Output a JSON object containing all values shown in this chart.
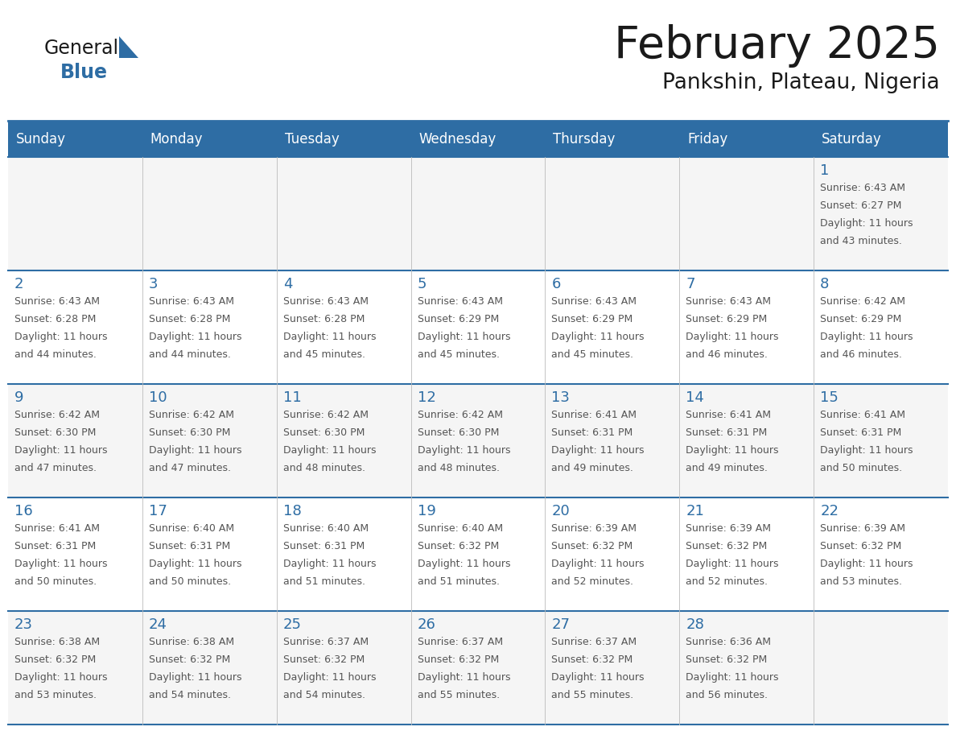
{
  "title": "February 2025",
  "subtitle": "Pankshin, Plateau, Nigeria",
  "days_of_week": [
    "Sunday",
    "Monday",
    "Tuesday",
    "Wednesday",
    "Thursday",
    "Friday",
    "Saturday"
  ],
  "header_bg": "#2E6DA4",
  "header_text": "#FFFFFF",
  "cell_bg_odd": "#F5F5F5",
  "cell_bg_even": "#FFFFFF",
  "grid_line_color": "#2E6DA4",
  "text_color": "#555555",
  "day_num_color": "#2E6DA4",
  "calendar": [
    [
      null,
      null,
      null,
      null,
      null,
      null,
      {
        "day": 1,
        "sunrise": "6:43 AM",
        "sunset": "6:27 PM",
        "daylight": "11 hours and 43 minutes."
      }
    ],
    [
      {
        "day": 2,
        "sunrise": "6:43 AM",
        "sunset": "6:28 PM",
        "daylight": "11 hours and 44 minutes."
      },
      {
        "day": 3,
        "sunrise": "6:43 AM",
        "sunset": "6:28 PM",
        "daylight": "11 hours and 44 minutes."
      },
      {
        "day": 4,
        "sunrise": "6:43 AM",
        "sunset": "6:28 PM",
        "daylight": "11 hours and 45 minutes."
      },
      {
        "day": 5,
        "sunrise": "6:43 AM",
        "sunset": "6:29 PM",
        "daylight": "11 hours and 45 minutes."
      },
      {
        "day": 6,
        "sunrise": "6:43 AM",
        "sunset": "6:29 PM",
        "daylight": "11 hours and 45 minutes."
      },
      {
        "day": 7,
        "sunrise": "6:43 AM",
        "sunset": "6:29 PM",
        "daylight": "11 hours and 46 minutes."
      },
      {
        "day": 8,
        "sunrise": "6:42 AM",
        "sunset": "6:29 PM",
        "daylight": "11 hours and 46 minutes."
      }
    ],
    [
      {
        "day": 9,
        "sunrise": "6:42 AM",
        "sunset": "6:30 PM",
        "daylight": "11 hours and 47 minutes."
      },
      {
        "day": 10,
        "sunrise": "6:42 AM",
        "sunset": "6:30 PM",
        "daylight": "11 hours and 47 minutes."
      },
      {
        "day": 11,
        "sunrise": "6:42 AM",
        "sunset": "6:30 PM",
        "daylight": "11 hours and 48 minutes."
      },
      {
        "day": 12,
        "sunrise": "6:42 AM",
        "sunset": "6:30 PM",
        "daylight": "11 hours and 48 minutes."
      },
      {
        "day": 13,
        "sunrise": "6:41 AM",
        "sunset": "6:31 PM",
        "daylight": "11 hours and 49 minutes."
      },
      {
        "day": 14,
        "sunrise": "6:41 AM",
        "sunset": "6:31 PM",
        "daylight": "11 hours and 49 minutes."
      },
      {
        "day": 15,
        "sunrise": "6:41 AM",
        "sunset": "6:31 PM",
        "daylight": "11 hours and 50 minutes."
      }
    ],
    [
      {
        "day": 16,
        "sunrise": "6:41 AM",
        "sunset": "6:31 PM",
        "daylight": "11 hours and 50 minutes."
      },
      {
        "day": 17,
        "sunrise": "6:40 AM",
        "sunset": "6:31 PM",
        "daylight": "11 hours and 50 minutes."
      },
      {
        "day": 18,
        "sunrise": "6:40 AM",
        "sunset": "6:31 PM",
        "daylight": "11 hours and 51 minutes."
      },
      {
        "day": 19,
        "sunrise": "6:40 AM",
        "sunset": "6:32 PM",
        "daylight": "11 hours and 51 minutes."
      },
      {
        "day": 20,
        "sunrise": "6:39 AM",
        "sunset": "6:32 PM",
        "daylight": "11 hours and 52 minutes."
      },
      {
        "day": 21,
        "sunrise": "6:39 AM",
        "sunset": "6:32 PM",
        "daylight": "11 hours and 52 minutes."
      },
      {
        "day": 22,
        "sunrise": "6:39 AM",
        "sunset": "6:32 PM",
        "daylight": "11 hours and 53 minutes."
      }
    ],
    [
      {
        "day": 23,
        "sunrise": "6:38 AM",
        "sunset": "6:32 PM",
        "daylight": "11 hours and 53 minutes."
      },
      {
        "day": 24,
        "sunrise": "6:38 AM",
        "sunset": "6:32 PM",
        "daylight": "11 hours and 54 minutes."
      },
      {
        "day": 25,
        "sunrise": "6:37 AM",
        "sunset": "6:32 PM",
        "daylight": "11 hours and 54 minutes."
      },
      {
        "day": 26,
        "sunrise": "6:37 AM",
        "sunset": "6:32 PM",
        "daylight": "11 hours and 55 minutes."
      },
      {
        "day": 27,
        "sunrise": "6:37 AM",
        "sunset": "6:32 PM",
        "daylight": "11 hours and 55 minutes."
      },
      {
        "day": 28,
        "sunrise": "6:36 AM",
        "sunset": "6:32 PM",
        "daylight": "11 hours and 56 minutes."
      },
      null
    ]
  ]
}
